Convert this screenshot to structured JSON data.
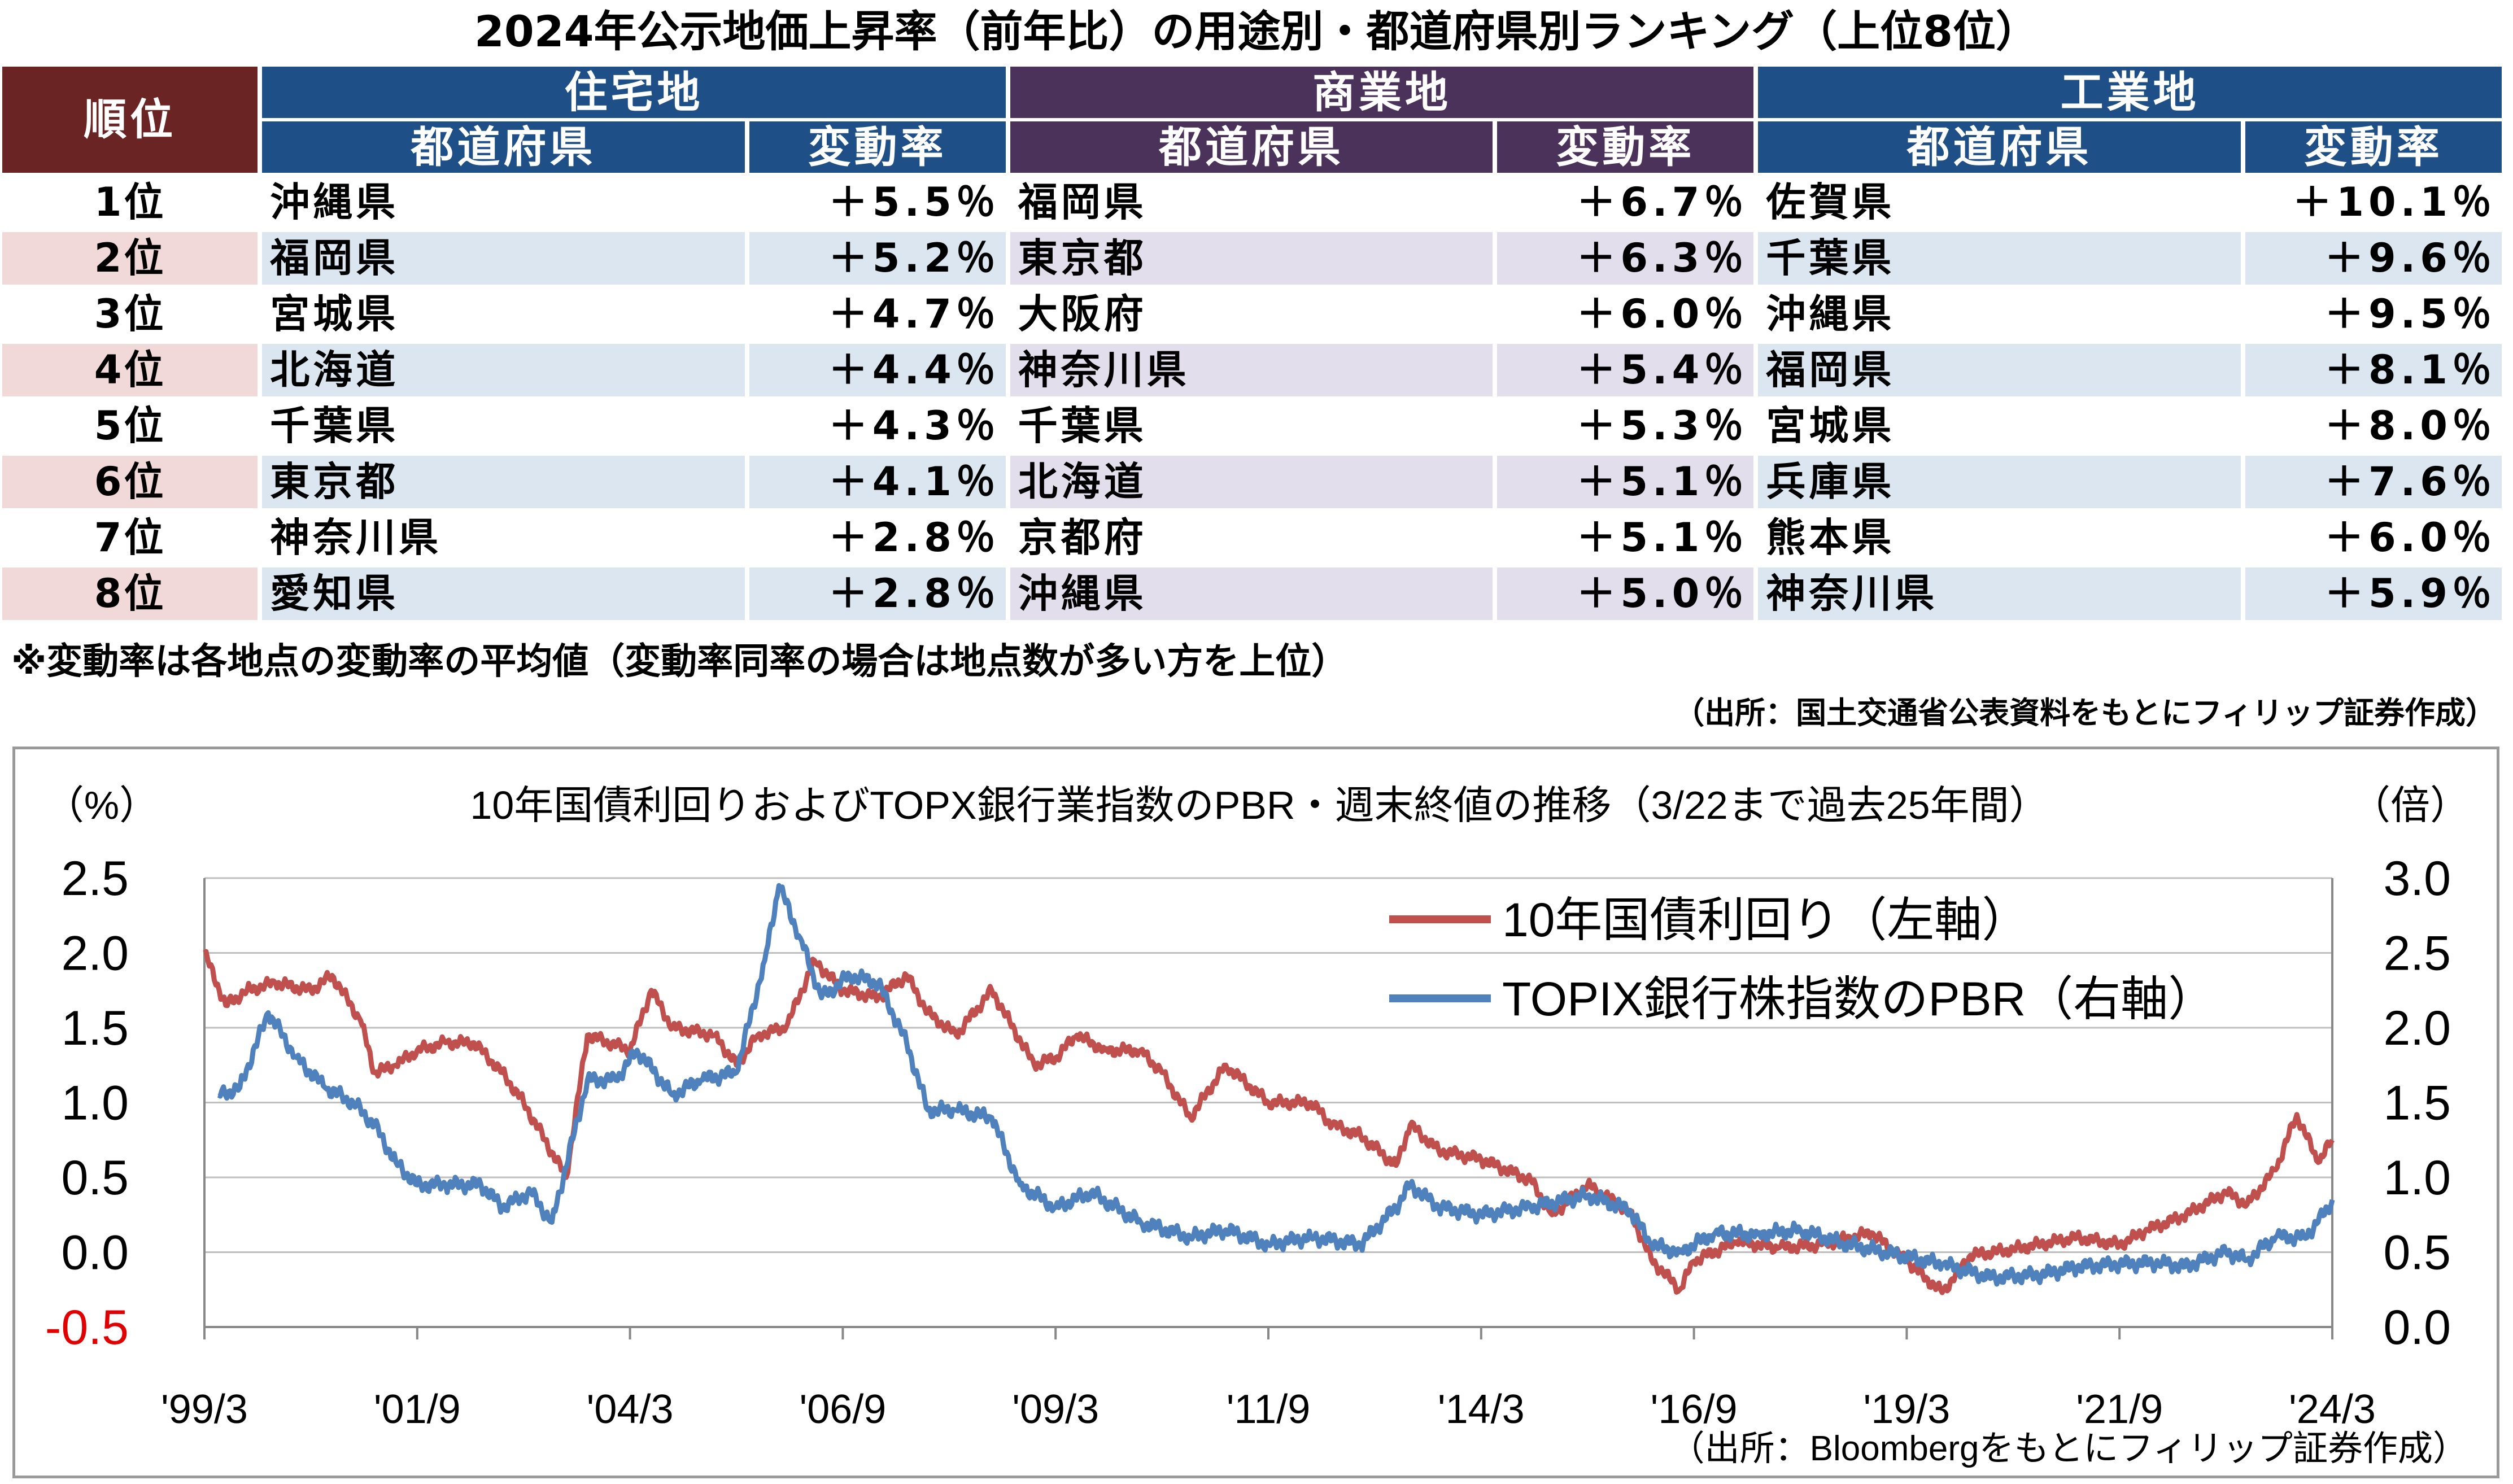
{
  "table": {
    "title": "2024年公示地価上昇率（前年比）の用途別・都道府県別ランキング（上位8位）",
    "rank_header": "順位",
    "categories": [
      "住宅地",
      "商業地",
      "工業地"
    ],
    "pref_header": "都道府県",
    "rate_header": "変動率",
    "ranks": [
      "1位",
      "2位",
      "3位",
      "4位",
      "5位",
      "6位",
      "7位",
      "8位"
    ],
    "residential": [
      {
        "pref": "沖縄県",
        "rate": "＋5.5％"
      },
      {
        "pref": "福岡県",
        "rate": "＋5.2％"
      },
      {
        "pref": "宮城県",
        "rate": "＋4.7％"
      },
      {
        "pref": "北海道",
        "rate": "＋4.4％"
      },
      {
        "pref": "千葉県",
        "rate": "＋4.3％"
      },
      {
        "pref": "東京都",
        "rate": "＋4.1％"
      },
      {
        "pref": "神奈川県",
        "rate": "＋2.8％"
      },
      {
        "pref": "愛知県",
        "rate": "＋2.8％"
      }
    ],
    "commercial": [
      {
        "pref": "福岡県",
        "rate": "＋6.7％"
      },
      {
        "pref": "東京都",
        "rate": "＋6.3％"
      },
      {
        "pref": "大阪府",
        "rate": "＋6.0％"
      },
      {
        "pref": "神奈川県",
        "rate": "＋5.4％"
      },
      {
        "pref": "千葉県",
        "rate": "＋5.3％"
      },
      {
        "pref": "北海道",
        "rate": "＋5.1％"
      },
      {
        "pref": "京都府",
        "rate": "＋5.1％"
      },
      {
        "pref": "沖縄県",
        "rate": "＋5.0％"
      }
    ],
    "industrial": [
      {
        "pref": "佐賀県",
        "rate": "＋10.1％"
      },
      {
        "pref": "千葉県",
        "rate": "＋9.6％"
      },
      {
        "pref": "沖縄県",
        "rate": "＋9.5％"
      },
      {
        "pref": "福岡県",
        "rate": "＋8.1％"
      },
      {
        "pref": "宮城県",
        "rate": "＋8.0％"
      },
      {
        "pref": "兵庫県",
        "rate": "＋7.6％"
      },
      {
        "pref": "熊本県",
        "rate": "＋6.0％"
      },
      {
        "pref": "神奈川県",
        "rate": "＋5.9％"
      }
    ],
    "note": "※変動率は各地点の変動率の平均値（変動率同率の場合は地点数が多い方を上位）",
    "source": "（出所：国土交通省公表資料をもとにフィリップ証券作成）",
    "colors": {
      "rank_header": "#6a2424",
      "residential_header": "#1e4f86",
      "commercial_header": "#4a325a",
      "industrial_header": "#1e4f86",
      "rank_band": "#f2d9d9",
      "residential_band": "#dce6f1",
      "commercial_band": "#e3deeb",
      "industrial_band": "#dce6f1"
    }
  },
  "chart_data": {
    "type": "line",
    "title": "10年国債利回りおよびTOPX銀行業指数のPBR・週末終値の推移（3/22まで過去25年間）",
    "left_unit": "（%）",
    "right_unit": "（倍）",
    "source": "（出所：Bloombergをもとにフィリップ証券作成）",
    "x_ticks": [
      "'99/3",
      "'01/9",
      "'04/3",
      "'06/9",
      "'09/3",
      "'11/9",
      "'14/3",
      "'16/9",
      "'19/3",
      "'21/9",
      "'24/3"
    ],
    "x_range": [
      "1999-03",
      "2024-03"
    ],
    "left_axis": {
      "ylim": [
        -0.5,
        2.5
      ],
      "ticks": [
        "-0.5",
        "0.0",
        "0.5",
        "1.0",
        "1.5",
        "2.0",
        "2.5"
      ],
      "negative_color": "#e00000"
    },
    "right_axis": {
      "ylim": [
        0.0,
        3.0
      ],
      "ticks": [
        "0.0",
        "0.5",
        "1.0",
        "1.5",
        "2.0",
        "2.5",
        "3.0"
      ]
    },
    "legend_position": "top-right",
    "series": [
      {
        "name": "10年国債利回り（左軸）",
        "axis": "left",
        "color": "#c0504d",
        "points": [
          [
            "1999-03",
            2.0
          ],
          [
            "1999-06",
            1.65
          ],
          [
            "1999-09",
            1.75
          ],
          [
            "2000-01",
            1.8
          ],
          [
            "2000-06",
            1.75
          ],
          [
            "2000-09",
            1.85
          ],
          [
            "2001-01",
            1.55
          ],
          [
            "2001-03",
            1.2
          ],
          [
            "2001-06",
            1.25
          ],
          [
            "2001-09",
            1.35
          ],
          [
            "2002-01",
            1.4
          ],
          [
            "2002-05",
            1.4
          ],
          [
            "2002-09",
            1.2
          ],
          [
            "2002-12",
            1.0
          ],
          [
            "2003-03",
            0.75
          ],
          [
            "2003-06",
            0.5
          ],
          [
            "2003-09",
            1.45
          ],
          [
            "2004-03",
            1.35
          ],
          [
            "2004-06",
            1.75
          ],
          [
            "2004-09",
            1.5
          ],
          [
            "2005-03",
            1.45
          ],
          [
            "2005-06",
            1.25
          ],
          [
            "2005-09",
            1.45
          ],
          [
            "2006-01",
            1.5
          ],
          [
            "2006-05",
            1.95
          ],
          [
            "2006-09",
            1.75
          ],
          [
            "2007-02",
            1.7
          ],
          [
            "2007-06",
            1.85
          ],
          [
            "2007-09",
            1.6
          ],
          [
            "2008-01",
            1.45
          ],
          [
            "2008-06",
            1.75
          ],
          [
            "2008-12",
            1.25
          ],
          [
            "2009-03",
            1.3
          ],
          [
            "2009-06",
            1.45
          ],
          [
            "2009-10",
            1.35
          ],
          [
            "2010-03",
            1.35
          ],
          [
            "2010-06",
            1.2
          ],
          [
            "2010-10",
            0.9
          ],
          [
            "2011-03",
            1.25
          ],
          [
            "2011-09",
            1.0
          ],
          [
            "2012-03",
            1.0
          ],
          [
            "2012-06",
            0.85
          ],
          [
            "2012-10",
            0.78
          ],
          [
            "2013-03",
            0.58
          ],
          [
            "2013-05",
            0.85
          ],
          [
            "2013-09",
            0.68
          ],
          [
            "2014-03",
            0.62
          ],
          [
            "2014-10",
            0.48
          ],
          [
            "2015-01",
            0.25
          ],
          [
            "2015-06",
            0.45
          ],
          [
            "2015-12",
            0.27
          ],
          [
            "2016-03",
            -0.05
          ],
          [
            "2016-07",
            -0.25
          ],
          [
            "2016-09",
            -0.06
          ],
          [
            "2017-03",
            0.07
          ],
          [
            "2017-09",
            0.03
          ],
          [
            "2018-03",
            0.05
          ],
          [
            "2018-10",
            0.13
          ],
          [
            "2019-03",
            -0.06
          ],
          [
            "2019-08",
            -0.27
          ],
          [
            "2019-12",
            -0.02
          ],
          [
            "2020-06",
            0.02
          ],
          [
            "2021-03",
            0.1
          ],
          [
            "2021-09",
            0.05
          ],
          [
            "2022-01",
            0.15
          ],
          [
            "2022-06",
            0.24
          ],
          [
            "2022-12",
            0.4
          ],
          [
            "2023-03",
            0.32
          ],
          [
            "2023-07",
            0.55
          ],
          [
            "2023-10",
            0.92
          ],
          [
            "2024-01",
            0.6
          ],
          [
            "2024-03",
            0.75
          ]
        ]
      },
      {
        "name": "TOPIX銀行株指数のPBR（右軸）",
        "axis": "right",
        "color": "#4f81bd",
        "points": [
          [
            "1999-05",
            1.55
          ],
          [
            "1999-08",
            1.6
          ],
          [
            "1999-12",
            2.1
          ],
          [
            "2000-04",
            1.8
          ],
          [
            "2000-08",
            1.6
          ],
          [
            "2000-12",
            1.5
          ],
          [
            "2001-03",
            1.35
          ],
          [
            "2001-06",
            1.1
          ],
          [
            "2001-09",
            0.95
          ],
          [
            "2002-01",
            0.95
          ],
          [
            "2002-06",
            0.95
          ],
          [
            "2002-09",
            0.8
          ],
          [
            "2003-01",
            0.9
          ],
          [
            "2003-04",
            0.7
          ],
          [
            "2003-09",
            1.65
          ],
          [
            "2004-01",
            1.65
          ],
          [
            "2004-04",
            1.85
          ],
          [
            "2004-09",
            1.55
          ],
          [
            "2005-01",
            1.65
          ],
          [
            "2005-06",
            1.7
          ],
          [
            "2005-10",
            2.45
          ],
          [
            "2005-12",
            2.95
          ],
          [
            "2006-03",
            2.6
          ],
          [
            "2006-06",
            2.2
          ],
          [
            "2006-10",
            2.35
          ],
          [
            "2007-02",
            2.3
          ],
          [
            "2007-06",
            1.9
          ],
          [
            "2007-09",
            1.45
          ],
          [
            "2008-01",
            1.45
          ],
          [
            "2008-06",
            1.4
          ],
          [
            "2008-10",
            0.95
          ],
          [
            "2009-03",
            0.8
          ],
          [
            "2009-08",
            0.9
          ],
          [
            "2010-03",
            0.7
          ],
          [
            "2010-10",
            0.6
          ],
          [
            "2011-03",
            0.65
          ],
          [
            "2011-09",
            0.55
          ],
          [
            "2012-03",
            0.6
          ],
          [
            "2012-10",
            0.55
          ],
          [
            "2013-03",
            0.8
          ],
          [
            "2013-05",
            0.95
          ],
          [
            "2013-09",
            0.8
          ],
          [
            "2014-03",
            0.75
          ],
          [
            "2014-10",
            0.8
          ],
          [
            "2015-06",
            0.88
          ],
          [
            "2015-12",
            0.78
          ],
          [
            "2016-03",
            0.55
          ],
          [
            "2016-07",
            0.5
          ],
          [
            "2016-12",
            0.63
          ],
          [
            "2017-06",
            0.62
          ],
          [
            "2017-12",
            0.65
          ],
          [
            "2018-06",
            0.56
          ],
          [
            "2018-12",
            0.5
          ],
          [
            "2019-08",
            0.42
          ],
          [
            "2020-03",
            0.33
          ],
          [
            "2020-10",
            0.35
          ],
          [
            "2021-03",
            0.4
          ],
          [
            "2021-09",
            0.42
          ],
          [
            "2022-03",
            0.43
          ],
          [
            "2022-06",
            0.4
          ],
          [
            "2022-12",
            0.5
          ],
          [
            "2023-03",
            0.45
          ],
          [
            "2023-07",
            0.6
          ],
          [
            "2023-11",
            0.6
          ],
          [
            "2024-01",
            0.7
          ],
          [
            "2024-03",
            0.85
          ]
        ]
      }
    ]
  }
}
